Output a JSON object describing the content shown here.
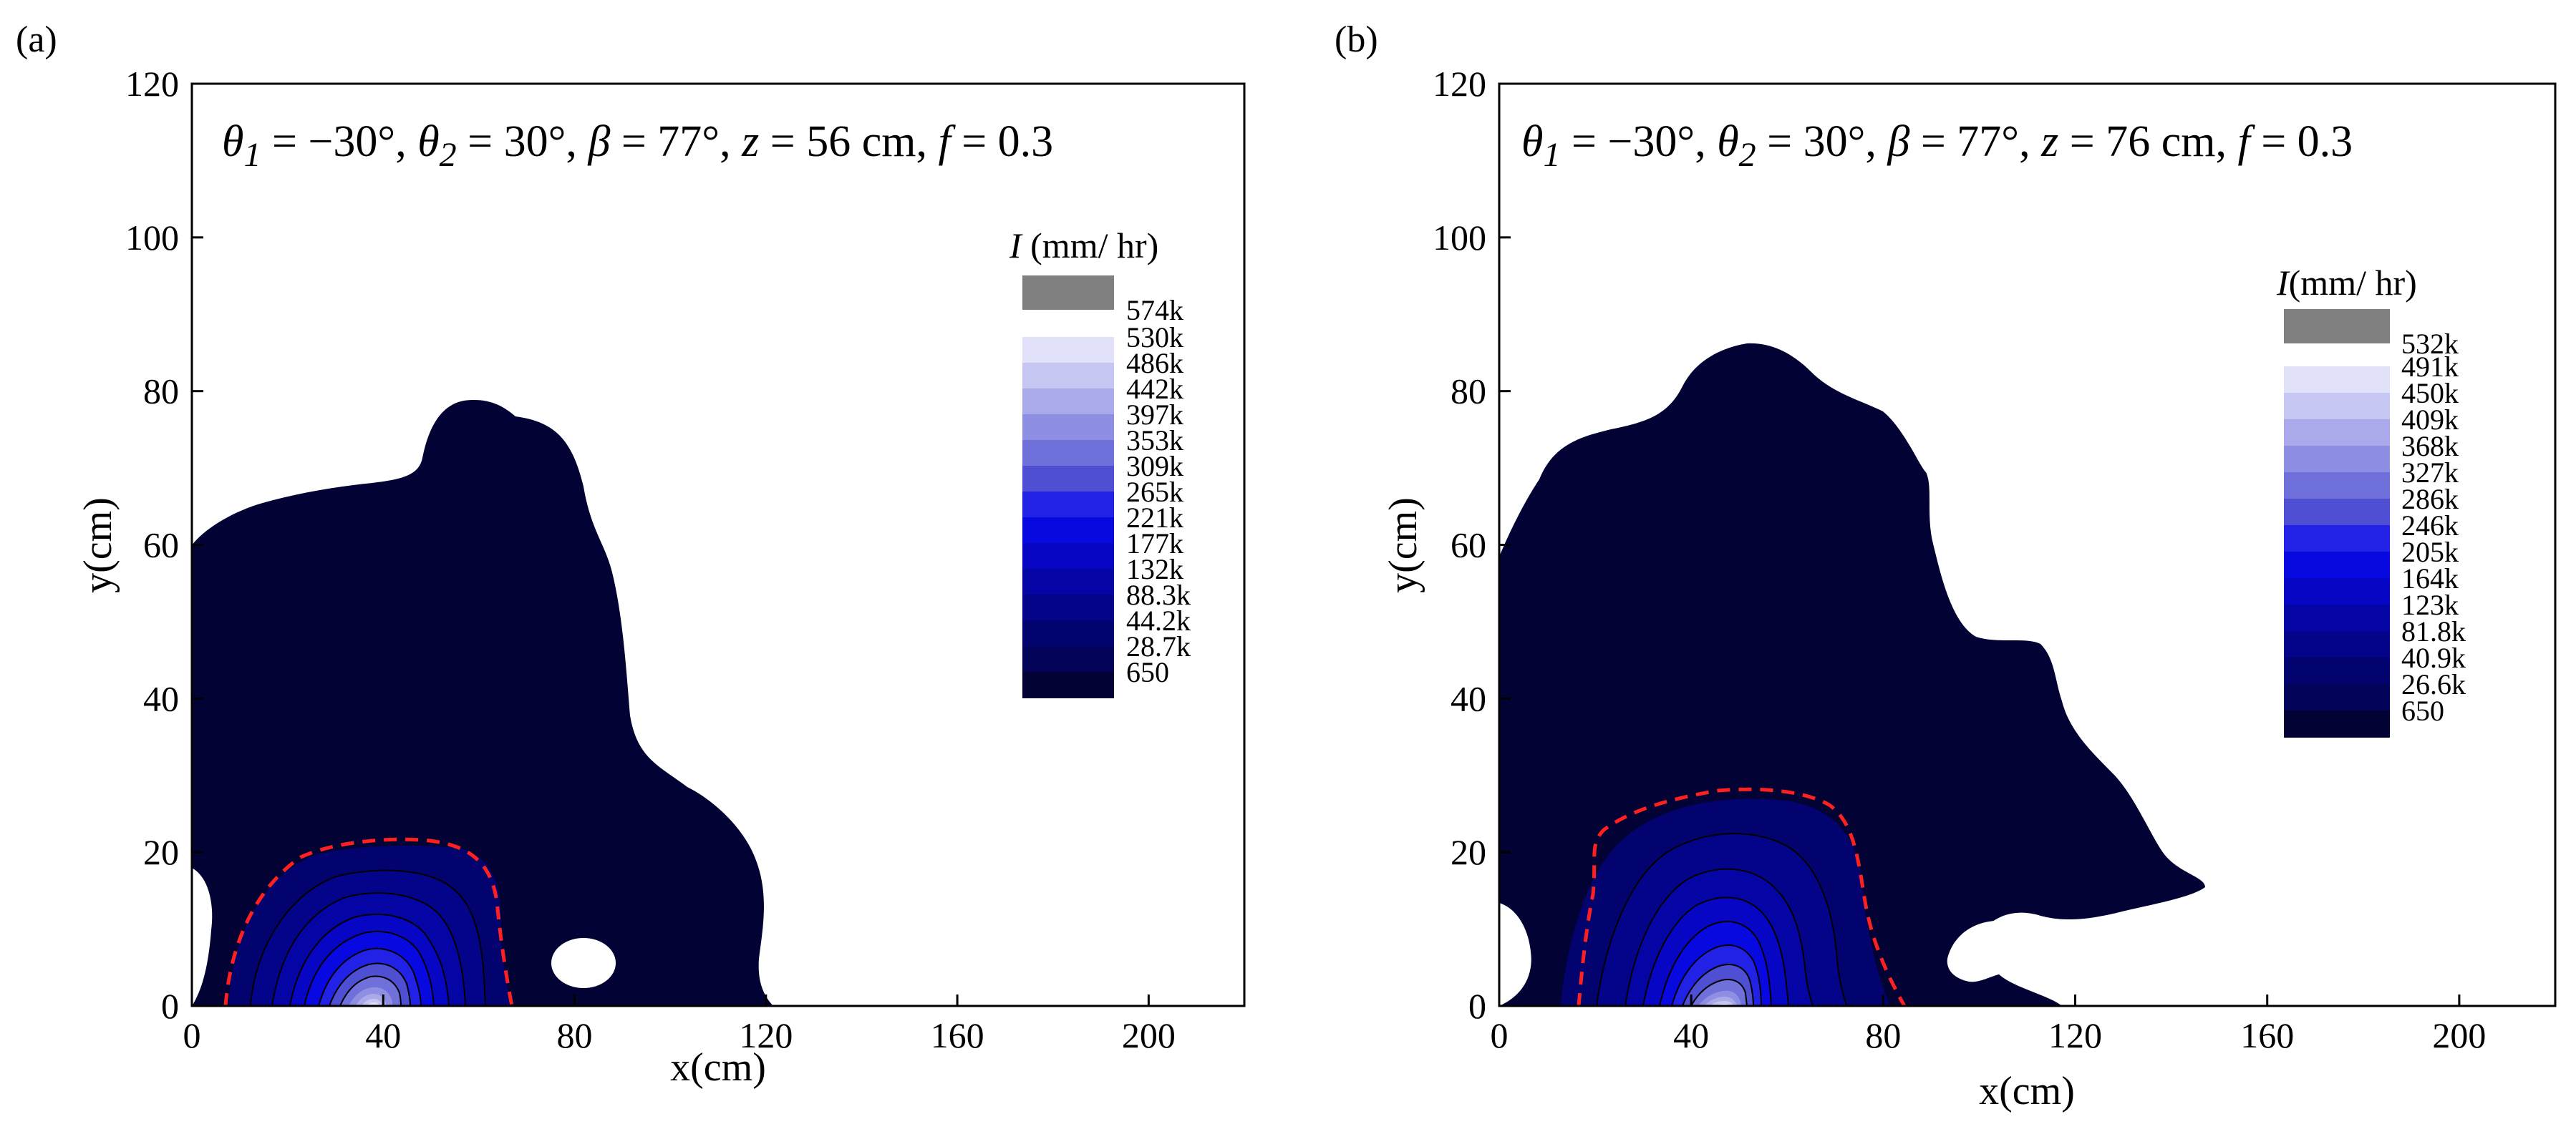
{
  "chart_data": [
    {
      "type": "contour",
      "panel": "(a)",
      "title": "θ1 = −30°, θ2 = 30°, β = 77°, z = 56 cm, f = 0.3",
      "title_parts": {
        "theta1": "θ",
        "theta1_sub": "1",
        "theta1_val": " = −30°, ",
        "theta2": "θ",
        "theta2_sub": "2",
        "theta2_val": " = 30°, ",
        "beta": "β",
        "beta_val": " = 77°, ",
        "z": "z",
        "z_val": " = 56 cm, ",
        "f": "f",
        "f_val": " = 0.3"
      },
      "xlabel": "x(cm)",
      "ylabel": "y(cm)",
      "xlim": [
        0,
        220
      ],
      "ylim": [
        0,
        120
      ],
      "xticks": [
        0,
        40,
        80,
        120,
        160,
        200
      ],
      "yticks": [
        0,
        20,
        40,
        60,
        80,
        100,
        120
      ],
      "colorbar": {
        "title": "I (mm/ hr)",
        "title_symbol": "I",
        "title_units": " (mm/ hr)",
        "overflow_label": "574k",
        "levels": [
          "530k",
          "486k",
          "442k",
          "397k",
          "353k",
          "309k",
          "265k",
          "221k",
          "177k",
          "132k",
          "88.3k",
          "44.2k",
          "28.7k",
          "650"
        ]
      },
      "peak": {
        "x": 40,
        "y": 0
      },
      "dashed_contour_level": "28.7k"
    },
    {
      "type": "contour",
      "panel": "(b)",
      "title": "θ1 = −30°, θ2 = 30°, β = 77°, z = 76 cm, f = 0.3",
      "title_parts": {
        "theta1": "θ",
        "theta1_sub": "1",
        "theta1_val": " = −30°, ",
        "theta2": "θ",
        "theta2_sub": "2",
        "theta2_val": " = 30°, ",
        "beta": "β",
        "beta_val": " = 77°, ",
        "z": "z",
        "z_val": " = 76 cm, ",
        "f": "f",
        "f_val": " = 0.3"
      },
      "xlabel": "x(cm)",
      "ylabel": "y(cm)",
      "xlim": [
        0,
        220
      ],
      "ylim": [
        0,
        120
      ],
      "xticks": [
        0,
        40,
        80,
        120,
        160,
        200
      ],
      "yticks": [
        0,
        20,
        40,
        60,
        80,
        100,
        120
      ],
      "colorbar": {
        "title": "I(mm/ hr)",
        "title_symbol": "I",
        "title_units": "(mm/ hr)",
        "overflow_label": "532k",
        "levels": [
          "491k",
          "450k",
          "409k",
          "368k",
          "327k",
          "286k",
          "246k",
          "205k",
          "164k",
          "123k",
          "81.8k",
          "40.9k",
          "26.6k",
          "650"
        ]
      },
      "peak": {
        "x": 45,
        "y": 0
      },
      "dashed_contour_level": "26.6k"
    }
  ],
  "colors": {
    "background": "#ffffff",
    "overflow": "#808080",
    "dashed_contour": "#ff2020",
    "contour_line": "#000000",
    "levels_top_to_bottom": [
      "#e1e1fa",
      "#c6c6f2",
      "#aaaaea",
      "#8e8ee2",
      "#7070da",
      "#4f4fd4",
      "#2222e6",
      "#0808e0",
      "#0606c4",
      "#0505a6",
      "#04048a",
      "#030370",
      "#03035a",
      "#020234"
    ]
  }
}
